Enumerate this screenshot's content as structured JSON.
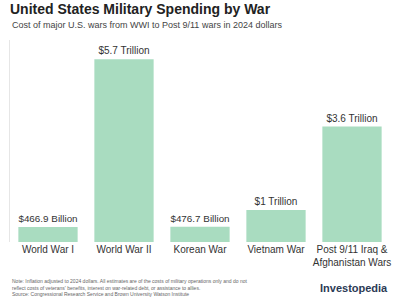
{
  "chart_data": {
    "type": "bar",
    "title": "United States Military Spending by War",
    "subtitle": "Cost of major U.S. wars from WWI to Post 9/11 wars in 2024 dollars",
    "categories": [
      "World War I",
      "World War II",
      "Korean War",
      "Vietnam War",
      "Post 9/11 Iraq & Afghanistan Wars"
    ],
    "values": [
      466.9,
      5700,
      476.7,
      1000,
      3600
    ],
    "value_labels": [
      "$466.9 Billion",
      "$5.7 Trillion",
      "$476.7 Billion",
      "$1 Trillion",
      "$3.6 Trillion"
    ],
    "color": "#a9dcc0",
    "ylim": [
      0,
      6300
    ],
    "grid": false,
    "data_labels": true,
    "tick_labels": "x",
    "note": "Note: Inflation adjusted to 2024 dollars. All estimates are of the costs of military operations only and do not reflect costs of veterans' benefits, interest on war-related debt, or assistance to allies.",
    "source": "Source: Congressional Research Service and Brown University Watson Institute",
    "brand": "Investopedia"
  }
}
